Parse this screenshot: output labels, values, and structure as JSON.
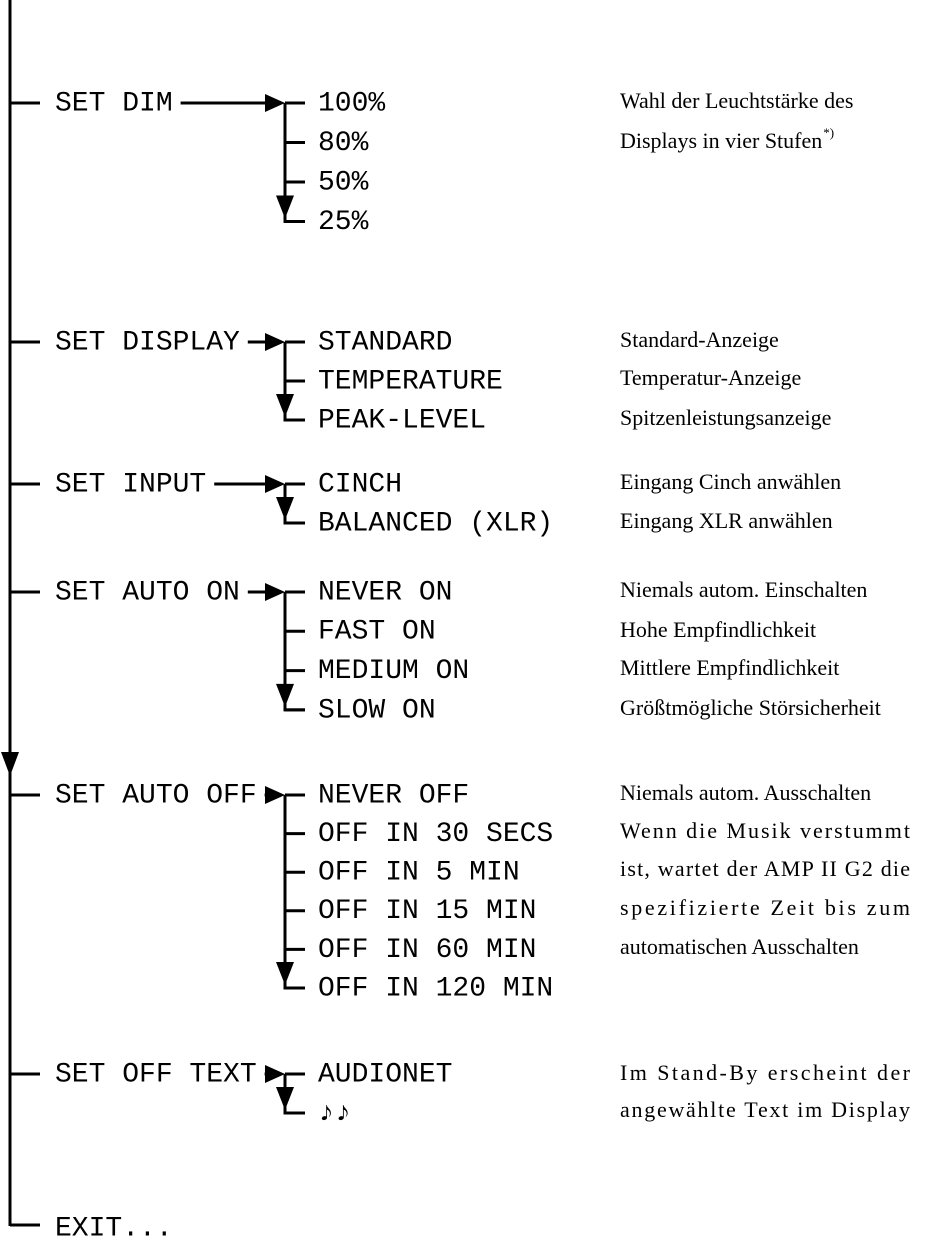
{
  "groups": [
    {
      "label": "SET DIM",
      "options": [
        "100%",
        "80%",
        "50%",
        "25%"
      ],
      "descriptions": [
        "Wahl der Leuchtstärke des",
        "Displays in vier Stufen"
      ],
      "footnote_mark": "*)"
    },
    {
      "label": "SET DISPLAY",
      "options": [
        "STANDARD",
        "TEMPERATURE",
        "PEAK-LEVEL"
      ],
      "descriptions": [
        "Standard-Anzeige",
        "Temperatur-Anzeige",
        "Spitzenleistungsanzeige"
      ]
    },
    {
      "label": "SET INPUT",
      "options": [
        "CINCH",
        "BALANCED (XLR)"
      ],
      "descriptions": [
        "Eingang Cinch anwählen",
        "Eingang XLR anwählen"
      ]
    },
    {
      "label": "SET AUTO ON",
      "options": [
        "NEVER ON",
        "FAST ON",
        "MEDIUM ON",
        "SLOW ON"
      ],
      "descriptions": [
        "Niemals autom. Einschalten",
        "Hohe Empfindlichkeit",
        "Mittlere Empfindlichkeit",
        "Größtmögliche Störsicherheit"
      ]
    },
    {
      "label": "SET AUTO OFF",
      "options": [
        "NEVER OFF",
        "OFF IN 30 SECS",
        "OFF IN 5 MIN",
        "OFF IN 15 MIN",
        "OFF IN 60 MIN",
        "OFF IN 120 MIN"
      ],
      "descriptions": [
        "Niemals autom. Ausschalten",
        "Wenn die Musik verstummt",
        "ist, wartet der AMP II G2 die",
        "spezifizierte Zeit bis zum",
        "automatischen Ausschalten"
      ]
    },
    {
      "label": "SET OFF TEXT",
      "options": [
        "AUDIONET",
        "♪♪"
      ],
      "descriptions": [
        "Im Stand-By erscheint der",
        "angewählte Text im Display"
      ]
    }
  ],
  "exit": "EXIT..."
}
